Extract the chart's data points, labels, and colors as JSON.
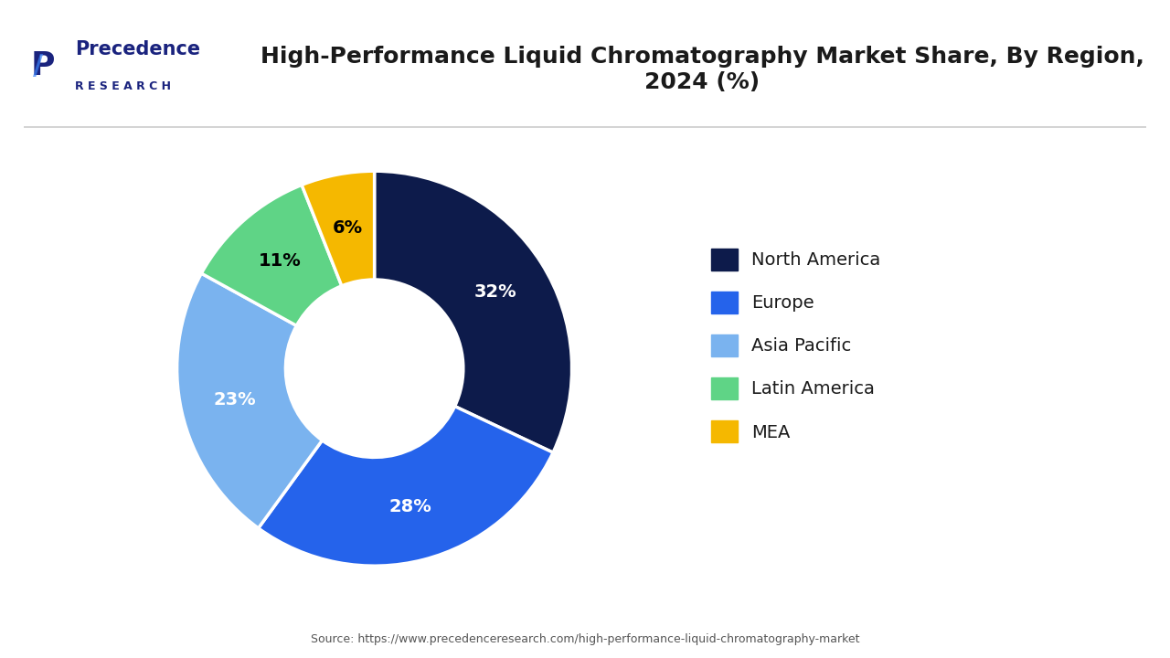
{
  "title": "High-Performance Liquid Chromatography Market Share, By Region,\n2024 (%)",
  "labels": [
    "North America",
    "Europe",
    "Asia Pacific",
    "Latin America",
    "MEA"
  ],
  "values": [
    32,
    28,
    23,
    11,
    6
  ],
  "colors": [
    "#0d1b4b",
    "#2563eb",
    "#7ab3ef",
    "#5fd486",
    "#f5b800"
  ],
  "pct_labels": [
    "32%",
    "28%",
    "23%",
    "11%",
    "6%"
  ],
  "source_text": "Source: https://www.precedenceresearch.com/high-performance-liquid-chromatography-market",
  "bg_color": "#ffffff",
  "text_color_dark": [
    "#ffffff",
    "#ffffff",
    "#ffffff",
    "#000000",
    "#000000"
  ],
  "wedge_label_fontsize": 14,
  "legend_fontsize": 14,
  "title_fontsize": 18,
  "logo_precedence_color": "#1a237e",
  "logo_research_color": "#1a237e"
}
